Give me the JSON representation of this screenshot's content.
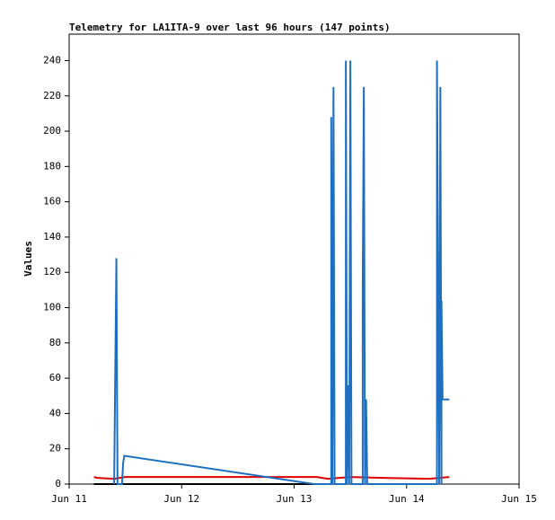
{
  "chart_data": {
    "type": "line",
    "title": "Telemetry for LA1ITA-9 over last 96 hours (147 points)",
    "y_label": "Values",
    "xlim": [
      11,
      15
    ],
    "xticks": [
      {
        "value": 11,
        "label": "Jun 11"
      },
      {
        "value": 12,
        "label": "Jun 12"
      },
      {
        "value": 13,
        "label": "Jun 13"
      },
      {
        "value": 14,
        "label": "Jun 14"
      },
      {
        "value": 15,
        "label": "Jun 15"
      }
    ],
    "ylim": [
      0,
      255
    ],
    "yticks": [
      0,
      20,
      40,
      60,
      80,
      100,
      120,
      140,
      160,
      180,
      200,
      220,
      240
    ],
    "grid": false,
    "series": [
      {
        "color": "#000000",
        "x": [
          11.22,
          13.18
        ],
        "values": [
          0,
          0
        ]
      },
      {
        "color": "#dd0000",
        "x": [
          11.22,
          11.25,
          11.4,
          11.5,
          13.2,
          13.3,
          13.5,
          13.8,
          14.2,
          14.38
        ],
        "values": [
          4,
          3.5,
          3,
          4,
          4,
          3,
          4,
          3.5,
          3,
          4
        ]
      },
      {
        "color": "#1f6fc0",
        "x": [
          11.4,
          11.42,
          11.43,
          11.47,
          11.48,
          11.49,
          13.18,
          13.33,
          13.33,
          13.34,
          13.35,
          13.36,
          13.46,
          13.46,
          13.47,
          13.48,
          13.49,
          13.5,
          13.51,
          13.61,
          13.61,
          13.62,
          13.63,
          13.64,
          13.65,
          14.27,
          14.27,
          14.29,
          14.3,
          14.31,
          14.31,
          14.32,
          14.38
        ],
        "values": [
          0,
          128,
          0,
          0,
          12,
          16,
          0,
          0,
          208,
          0,
          225,
          0,
          0,
          240,
          0,
          56,
          0,
          240,
          0,
          0,
          112,
          225,
          0,
          48,
          0,
          0,
          240,
          0,
          225,
          0,
          104,
          48,
          48
        ]
      }
    ]
  }
}
